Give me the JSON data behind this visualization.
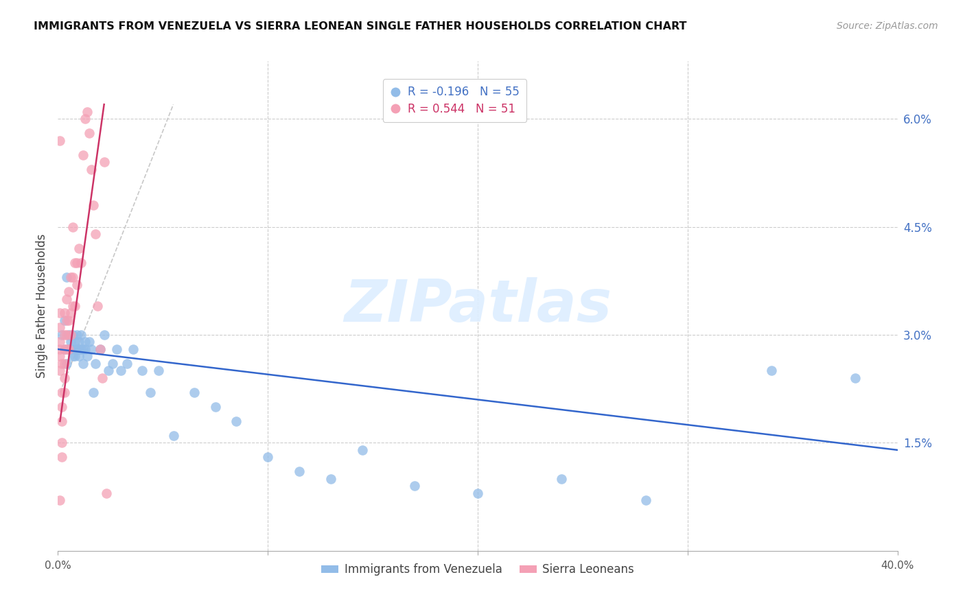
{
  "title": "IMMIGRANTS FROM VENEZUELA VS SIERRA LEONEAN SINGLE FATHER HOUSEHOLDS CORRELATION CHART",
  "source": "Source: ZipAtlas.com",
  "ylabel": "Single Father Households",
  "ytick_labels": [
    "1.5%",
    "3.0%",
    "4.5%",
    "6.0%"
  ],
  "ytick_values": [
    0.015,
    0.03,
    0.045,
    0.06
  ],
  "xlim": [
    0.0,
    0.4
  ],
  "ylim": [
    0.0,
    0.068
  ],
  "watermark": "ZIPatlas",
  "legend_r1": "-0.196",
  "legend_n1": "55",
  "legend_r2": "0.544",
  "legend_n2": "51",
  "blue_color": "#92bce8",
  "pink_color": "#f4a0b5",
  "trend_blue": "#3366cc",
  "trend_pink": "#cc3366",
  "trend_gray_dashed": "#c8c8c8",
  "blue_scatter_x": [
    0.002,
    0.003,
    0.003,
    0.004,
    0.004,
    0.005,
    0.005,
    0.006,
    0.006,
    0.007,
    0.007,
    0.008,
    0.008,
    0.008,
    0.009,
    0.009,
    0.01,
    0.01,
    0.01,
    0.011,
    0.011,
    0.012,
    0.012,
    0.013,
    0.013,
    0.014,
    0.015,
    0.016,
    0.017,
    0.018,
    0.02,
    0.022,
    0.024,
    0.026,
    0.028,
    0.03,
    0.033,
    0.036,
    0.04,
    0.044,
    0.048,
    0.055,
    0.065,
    0.075,
    0.085,
    0.1,
    0.115,
    0.13,
    0.145,
    0.17,
    0.2,
    0.24,
    0.28,
    0.34,
    0.38
  ],
  "blue_scatter_y": [
    0.03,
    0.032,
    0.028,
    0.038,
    0.026,
    0.028,
    0.03,
    0.029,
    0.028,
    0.027,
    0.03,
    0.029,
    0.028,
    0.027,
    0.03,
    0.028,
    0.029,
    0.028,
    0.027,
    0.028,
    0.03,
    0.026,
    0.028,
    0.029,
    0.028,
    0.027,
    0.029,
    0.028,
    0.022,
    0.026,
    0.028,
    0.03,
    0.025,
    0.026,
    0.028,
    0.025,
    0.026,
    0.028,
    0.025,
    0.022,
    0.025,
    0.016,
    0.022,
    0.02,
    0.018,
    0.013,
    0.011,
    0.01,
    0.014,
    0.009,
    0.008,
    0.01,
    0.007,
    0.025,
    0.024
  ],
  "pink_scatter_x": [
    0.001,
    0.001,
    0.001,
    0.001,
    0.001,
    0.001,
    0.001,
    0.002,
    0.002,
    0.002,
    0.002,
    0.002,
    0.002,
    0.003,
    0.003,
    0.003,
    0.003,
    0.003,
    0.003,
    0.004,
    0.004,
    0.004,
    0.004,
    0.005,
    0.005,
    0.005,
    0.006,
    0.006,
    0.006,
    0.007,
    0.007,
    0.007,
    0.008,
    0.008,
    0.009,
    0.009,
    0.01,
    0.011,
    0.012,
    0.013,
    0.014,
    0.015,
    0.016,
    0.017,
    0.018,
    0.019,
    0.02,
    0.021,
    0.022,
    0.023,
    0.001
  ],
  "pink_scatter_y": [
    0.025,
    0.027,
    0.028,
    0.029,
    0.031,
    0.033,
    0.057,
    0.013,
    0.015,
    0.018,
    0.02,
    0.022,
    0.026,
    0.022,
    0.024,
    0.026,
    0.028,
    0.03,
    0.033,
    0.028,
    0.03,
    0.032,
    0.035,
    0.028,
    0.032,
    0.036,
    0.03,
    0.033,
    0.038,
    0.034,
    0.038,
    0.045,
    0.034,
    0.04,
    0.037,
    0.04,
    0.042,
    0.04,
    0.055,
    0.06,
    0.061,
    0.058,
    0.053,
    0.048,
    0.044,
    0.034,
    0.028,
    0.024,
    0.054,
    0.008,
    0.007
  ],
  "blue_trend_x0": 0.0,
  "blue_trend_x1": 0.4,
  "blue_trend_y0": 0.028,
  "blue_trend_y1": 0.014,
  "pink_trend_x0": 0.001,
  "pink_trend_x1": 0.022,
  "pink_trend_y0": 0.018,
  "pink_trend_y1": 0.062,
  "gray_trend_x0": 0.001,
  "gray_trend_x1": 0.055,
  "gray_trend_y0": 0.022,
  "gray_trend_y1": 0.062
}
